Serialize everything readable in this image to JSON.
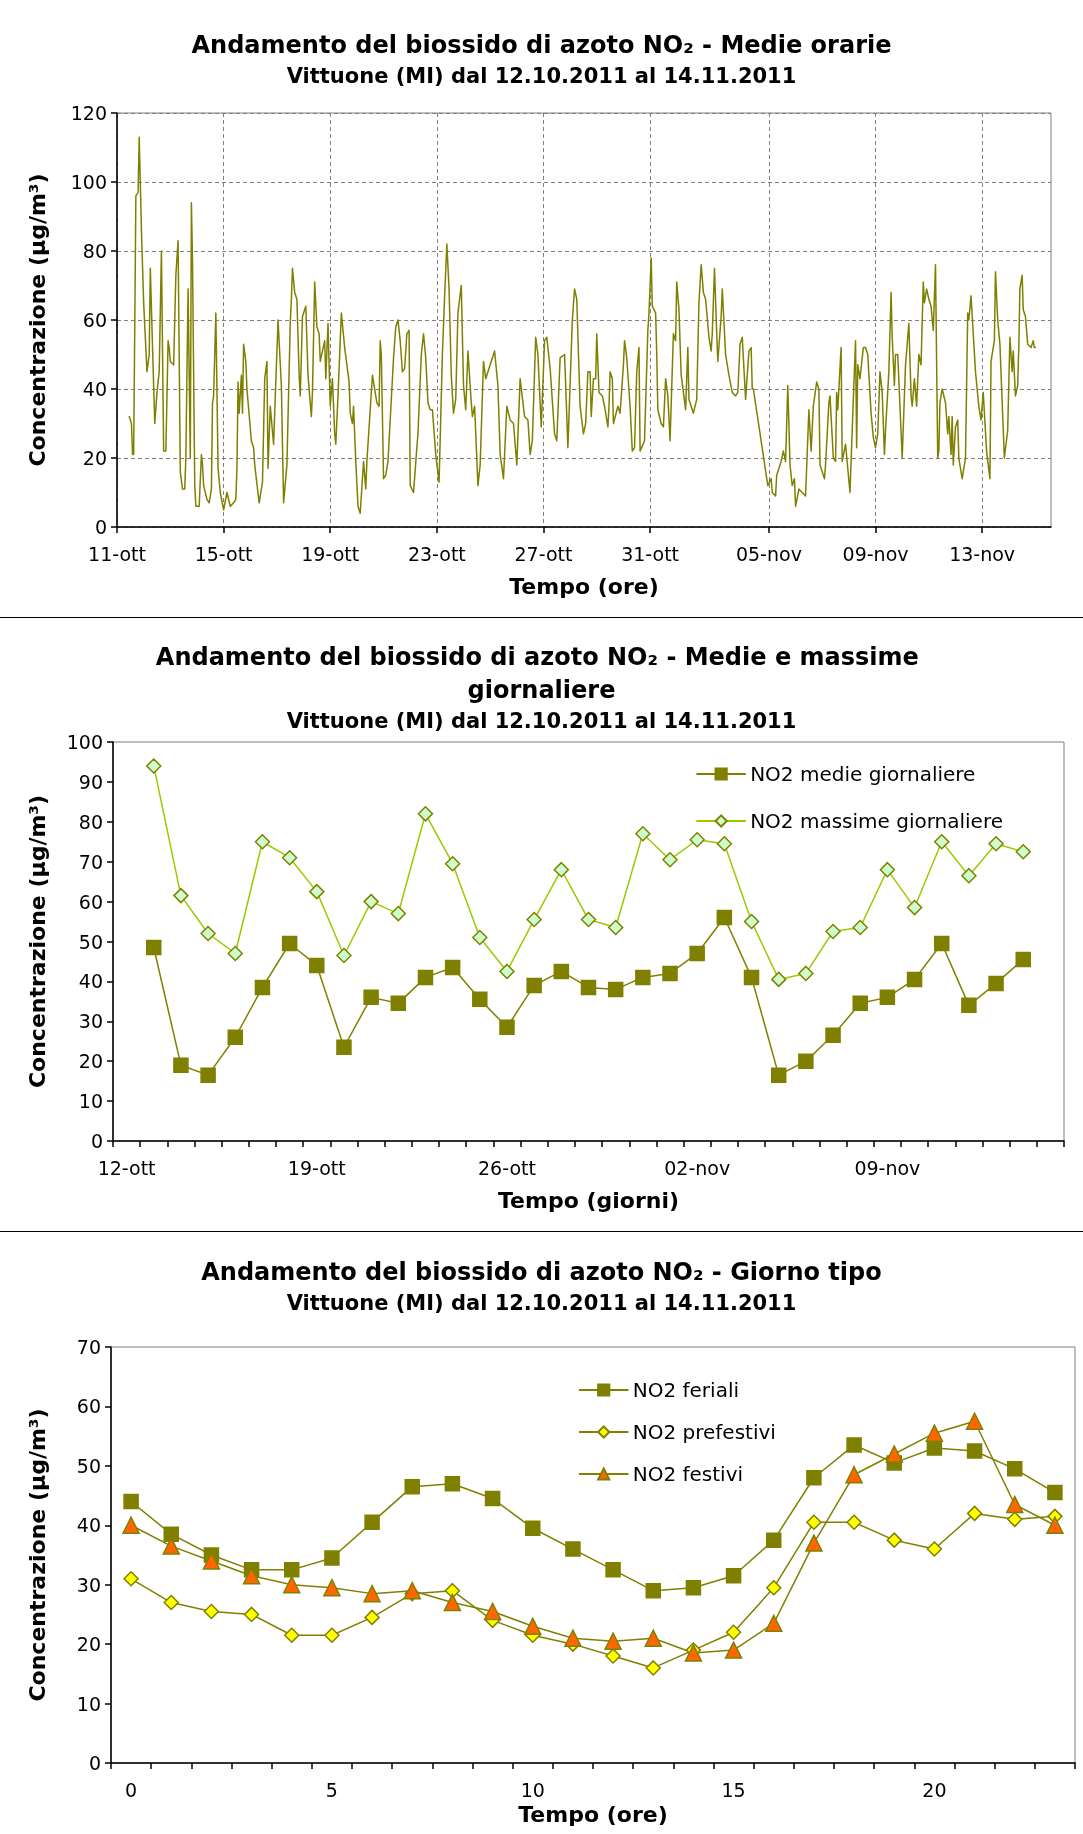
{
  "chart_data": [
    {
      "type": "line",
      "title": "Andamento del biossido di azoto NO₂ - Medie orarie",
      "subtitle": "Vittuone (MI) dal 12.10.2011 al 14.11.2011",
      "xlabel": "Tempo (ore)",
      "ylabel": "Concentrazione (µg/m³)",
      "color": "#808000",
      "grid": true,
      "xlim": [
        "2011-10-11T13:00",
        "2011-11-15T14:00"
      ],
      "xticks": [
        {
          "value": "2011-10-11T13:00",
          "label": "11-ott"
        },
        {
          "value": "2011-10-15T13:00",
          "label": "15-ott"
        },
        {
          "value": "2011-10-19T13:00",
          "label": "19-ott"
        },
        {
          "value": "2011-10-23T13:00",
          "label": "23-ott"
        },
        {
          "value": "2011-10-27T13:00",
          "label": "27-ott"
        },
        {
          "value": "2011-10-31T13:00",
          "label": "31-ott"
        },
        {
          "value": "2011-11-05T00:00",
          "label": "05-nov"
        },
        {
          "value": "2011-11-09T00:00",
          "label": "09-nov"
        },
        {
          "value": "2011-11-13T00:00",
          "label": "13-nov"
        }
      ],
      "ylim": [
        0,
        120
      ],
      "yticks": [
        0,
        20,
        40,
        60,
        80,
        100,
        120
      ],
      "x": [
        "2011-10-12T00:00",
        "2011-10-12T02:00",
        "2011-10-12T03:00",
        "2011-10-12T04:00",
        "2011-10-12T06:00",
        "2011-10-12T08:00",
        "2011-10-12T09:00",
        "2011-10-12T11:00",
        "2011-10-12T13:00",
        "2011-10-12T16:00",
        "2011-10-12T18:00",
        "2011-10-12T19:00",
        "2011-10-12T21:00",
        "2011-10-12T23:00",
        "2011-10-13T01:00",
        "2011-10-13T03:00",
        "2011-10-13T05:00",
        "2011-10-13T07:00",
        "2011-10-13T09:00",
        "2011-10-13T11:00",
        "2011-10-13T12:00",
        "2011-10-13T13:00",
        "2011-10-13T16:00",
        "2011-10-13T18:00",
        "2011-10-13T20:00",
        "2011-10-13T22:00",
        "2011-10-14T00:00",
        "2011-10-14T02:00",
        "2011-10-14T03:00",
        "2011-10-14T05:00",
        "2011-10-14T07:00",
        "2011-10-14T08:00",
        "2011-10-14T09:00",
        "2011-10-14T11:00",
        "2011-10-14T12:00",
        "2011-10-14T15:00",
        "2011-10-14T17:00",
        "2011-10-14T18:00",
        "2011-10-14T19:00",
        "2011-10-14T22:00",
        "2011-10-15T00:00",
        "2011-10-15T02:00",
        "2011-10-15T03:00",
        "2011-10-15T04:00",
        "2011-10-15T06:00",
        "2011-10-15T08:00",
        "2011-10-15T10:00",
        "2011-10-15T13:00",
        "2011-10-15T16:00",
        "2011-10-15T19:00",
        "2011-10-15T22:00",
        "2011-10-16T00:00",
        "2011-10-16T01:00",
        "2011-10-16T02:00",
        "2011-10-16T03:00",
        "2011-10-16T05:00",
        "2011-10-16T06:00",
        "2011-10-16T07:00",
        "2011-10-16T09:00",
        "2011-10-16T10:00",
        "2011-10-16T14:00",
        "2011-10-16T16:00",
        "2011-10-16T17:00",
        "2011-10-16T21:00",
        "2011-10-17T00:00",
        "2011-10-17T02:00",
        "2011-10-17T04:00",
        "2011-10-17T05:00",
        "2011-10-17T07:00",
        "2011-10-17T10:00",
        "2011-10-17T14:00",
        "2011-10-17T17:00",
        "2011-10-17T19:00",
        "2011-10-17T22:00",
        "2011-10-18T01:00",
        "2011-10-18T02:00",
        "2011-10-18T03:00",
        "2011-10-18T05:00",
        "2011-10-18T07:00",
        "2011-10-18T09:00",
        "2011-10-18T10:00",
        "2011-10-18T12:00",
        "2011-10-18T15:00",
        "2011-10-18T17:00",
        "2011-10-18T20:00",
        "2011-10-18T21:00",
        "2011-10-18T23:00",
        "2011-10-19T01:00",
        "2011-10-19T03:00",
        "2011-10-19T04:00",
        "2011-10-19T08:00",
        "2011-10-19T09:00",
        "2011-10-19T11:00",
        "2011-10-19T13:00",
        "2011-10-19T15:00",
        "2011-10-19T17:00",
        "2011-10-19T18:00",
        "2011-10-19T20:00",
        "2011-10-19T23:00",
        "2011-10-20T02:00",
        "2011-10-20T06:00",
        "2011-10-20T07:00",
        "2011-10-20T09:00",
        "2011-10-20T10:00",
        "2011-10-20T12:00",
        "2011-10-20T14:00",
        "2011-10-20T16:00",
        "2011-10-20T19:00",
        "2011-10-20T21:00",
        "2011-10-20T22:00",
        "2011-10-21T03:00",
        "2011-10-21T07:00",
        "2011-10-21T09:00",
        "2011-10-21T10:00",
        "2011-10-21T11:00",
        "2011-10-21T13:00",
        "2011-10-21T15:00",
        "2011-10-21T17:00",
        "2011-10-21T22:00",
        "2011-10-22T00:00",
        "2011-10-22T02:00",
        "2011-10-22T04:00",
        "2011-10-22T06:00",
        "2011-10-22T08:00",
        "2011-10-22T10:00",
        "2011-10-22T12:00",
        "2011-10-22T13:00",
        "2011-10-22T16:00",
        "2011-10-22T19:00",
        "2011-10-22T20:00",
        "2011-10-22T23:00",
        "2011-10-23T01:00",
        "2011-10-23T03:00",
        "2011-10-23T05:00",
        "2011-10-23T07:00",
        "2011-10-23T09:00",
        "2011-10-23T12:00",
        "2011-10-23T15:00",
        "2011-10-23T18:00",
        "2011-10-23T20:00",
        "2011-10-23T22:00",
        "2011-10-24T00:00",
        "2011-10-24T02:00",
        "2011-10-24T04:00",
        "2011-10-24T06:00",
        "2011-10-24T08:00",
        "2011-10-24T11:00",
        "2011-10-24T13:00",
        "2011-10-24T15:00",
        "2011-10-24T17:00",
        "2011-10-24T20:00",
        "2011-10-24T21:00",
        "2011-10-24T23:00",
        "2011-10-25T02:00",
        "2011-10-25T04:00",
        "2011-10-25T07:00",
        "2011-10-25T09:00",
        "2011-10-25T12:00",
        "2011-10-25T15:00",
        "2011-10-25T17:00",
        "2011-10-25T20:00",
        "2011-10-25T22:00",
        "2011-10-26T01:00",
        "2011-10-26T04:00",
        "2011-10-26T07:00",
        "2011-10-26T10:00",
        "2011-10-26T13:00",
        "2011-10-26T16:00",
        "2011-10-26T20:00",
        "2011-10-26T23:00",
        "2011-10-27T01:00",
        "2011-10-27T03:00",
        "2011-10-27T06:00",
        "2011-10-27T08:00",
        "2011-10-27T11:00",
        "2011-10-27T14:00",
        "2011-10-27T16:00",
        "2011-10-27T19:00",
        "2011-10-27T23:00",
        "2011-10-28T01:00",
        "2011-10-28T04:00",
        "2011-10-28T08:00",
        "2011-10-28T11:00",
        "2011-10-28T15:00",
        "2011-10-28T17:00",
        "2011-10-28T19:00",
        "2011-10-28T22:00",
        "2011-10-29T01:00",
        "2011-10-29T03:00",
        "2011-10-29T05:00",
        "2011-10-29T07:00",
        "2011-10-29T08:00",
        "2011-10-29T10:00",
        "2011-10-29T12:00",
        "2011-10-29T13:00",
        "2011-10-29T15:00",
        "2011-10-29T18:00",
        "2011-10-29T20:00",
        "2011-10-29T23:00",
        "2011-10-30T00:00",
        "2011-10-30T01:00",
        "2011-10-30T03:00",
        "2011-10-30T04:00",
        "2011-10-30T08:00",
        "2011-10-30T10:00",
        "2011-10-30T13:00",
        "2011-10-30T14:00",
        "2011-10-30T16:00",
        "2011-10-30T19:00",
        "2011-10-30T21:00",
        "2011-10-30T23:00",
        "2011-10-31T01:00",
        "2011-10-31T03:00",
        "2011-10-31T04:00",
        "2011-10-31T08:00",
        "2011-10-31T11:00",
        "2011-10-31T12:00",
        "2011-10-31T14:00",
        "2011-10-31T15:00",
        "2011-10-31T18:00",
        "2011-10-31T19:00",
        "2011-10-31T20:00",
        "2011-10-31T23:00",
        "2011-11-01T01:00",
        "2011-11-01T03:00",
        "2011-11-01T05:00",
        "2011-11-01T07:00",
        "2011-11-01T10:00",
        "2011-11-01T12:00",
        "2011-11-01T13:00",
        "2011-11-01T15:00",
        "2011-11-01T17:00",
        "2011-11-01T21:00",
        "2011-11-01T23:00",
        "2011-11-02T00:00",
        "2011-11-02T04:00",
        "2011-11-02T07:00",
        "2011-11-02T09:00",
        "2011-11-02T11:00",
        "2011-11-02T13:00",
        "2011-11-02T15:00",
        "2011-11-02T18:00",
        "2011-11-02T20:00",
        "2011-11-02T21:00",
        "2011-11-02T23:00",
        "2011-11-03T01:00",
        "2011-11-03T02:00",
        "2011-11-03T05:00",
        "2011-11-03T06:00",
        "2011-11-03T09:00",
        "2011-11-03T12:00",
        "2011-11-03T15:00",
        "2011-11-03T18:00",
        "2011-11-03T20:00",
        "2011-11-03T22:00",
        "2011-11-04T00:00",
        "2011-11-04T02:00",
        "2011-11-04T03:00",
        "2011-11-04T06:00",
        "2011-11-04T08:00",
        "2011-11-04T09:00",
        "2011-11-04T10:00",
        "2011-11-04T23:00",
        "2011-11-05T02:00",
        "2011-11-05T03:00",
        "2011-11-05T06:00",
        "2011-11-05T07:00",
        "2011-11-05T11:00",
        "2011-11-05T13:00",
        "2011-11-05T15:00",
        "2011-11-05T17:00",
        "2011-11-05T19:00",
        "2011-11-05T21:00",
        "2011-11-05T23:00",
        "2011-11-06T00:00",
        "2011-11-06T03:00",
        "2011-11-06T06:00",
        "2011-11-06T09:00",
        "2011-11-06T12:00",
        "2011-11-06T14:00",
        "2011-11-06T16:00",
        "2011-11-06T19:00",
        "2011-11-06T21:00",
        "2011-11-06T22:00",
        "2011-11-07T02:00",
        "2011-11-07T03:00",
        "2011-11-07T06:00",
        "2011-11-07T07:00",
        "2011-11-07T10:00",
        "2011-11-07T12:00",
        "2011-11-07T13:00",
        "2011-11-07T14:00",
        "2011-11-07T17:00",
        "2011-11-07T18:00",
        "2011-11-07T21:00",
        "2011-11-08T01:00",
        "2011-11-08T04:00",
        "2011-11-08T06:00",
        "2011-11-08T07:00",
        "2011-11-08T08:00",
        "2011-11-08T10:00",
        "2011-11-08T13:00",
        "2011-11-08T15:00",
        "2011-11-08T17:00",
        "2011-11-08T20:00",
        "2011-11-08T22:00",
        "2011-11-09T00:00",
        "2011-11-09T02:00",
        "2011-11-09T04:00",
        "2011-11-09T06:00",
        "2011-11-09T08:00",
        "2011-11-09T09:00",
        "2011-11-09T12:00",
        "2011-11-09T14:00",
        "2011-11-09T15:00",
        "2011-11-09T17:00",
        "2011-11-09T18:00",
        "2011-11-09T20:00",
        "2011-11-10T00:00",
        "2011-11-10T03:00",
        "2011-11-10T06:00",
        "2011-11-10T08:00",
        "2011-11-10T09:00",
        "2011-11-10T11:00",
        "2011-11-10T13:00",
        "2011-11-10T15:00",
        "2011-11-10T17:00",
        "2011-11-10T19:00",
        "2011-11-10T20:00",
        "2011-11-10T22:00",
        "2011-11-11T00:00",
        "2011-11-11T02:00",
        "2011-11-11T04:00",
        "2011-11-11T06:00",
        "2011-11-11T08:00",
        "2011-11-11T09:00",
        "2011-11-11T10:00",
        "2011-11-11T12:00",
        "2011-11-11T15:00",
        "2011-11-11T17:00",
        "2011-11-11T18:00",
        "2011-11-11T20:00",
        "2011-11-11T21:00",
        "2011-11-11T22:00",
        "2011-11-12T00:00",
        "2011-11-12T02:00",
        "2011-11-12T03:00",
        "2011-11-12T06:00",
        "2011-11-12T09:00",
        "2011-11-12T11:00",
        "2011-11-12T12:00",
        "2011-11-12T14:00",
        "2011-11-12T16:00",
        "2011-11-12T18:00",
        "2011-11-12T21:00",
        "2011-11-12T23:00",
        "2011-11-13T01:00",
        "2011-11-13T04:00",
        "2011-11-13T07:00",
        "2011-11-13T08:00",
        "2011-11-13T11:00",
        "2011-11-13T12:00",
        "2011-11-13T14:00",
        "2011-11-13T16:00",
        "2011-11-13T20:00",
        "2011-11-13T23:00",
        "2011-11-14T01:00",
        "2011-11-14T03:00",
        "2011-11-14T04:00",
        "2011-11-14T06:00",
        "2011-11-14T08:00",
        "2011-11-14T09:00",
        "2011-11-14T10:00",
        "2011-11-14T12:00",
        "2011-11-14T13:00",
        "2011-11-14T15:00",
        "2011-11-14T17:00",
        "2011-11-14T20:00",
        "2011-11-14T22:00",
        "2011-11-14T23:00",
        "2011-11-15T00:00"
      ],
      "values": [
        32,
        30,
        21,
        21,
        96,
        97,
        113,
        86,
        65,
        45,
        50,
        75,
        52,
        30,
        39,
        45,
        80,
        22,
        22,
        54,
        52,
        48,
        47,
        73,
        83,
        16,
        11,
        11,
        20,
        69,
        20,
        94,
        77,
        12,
        6,
        6,
        21,
        18,
        12,
        8,
        7,
        11,
        36,
        38,
        62,
        17,
        10,
        5,
        10,
        6,
        7,
        8,
        17,
        42,
        33,
        44,
        33,
        53,
        48,
        40,
        25,
        23,
        18,
        7,
        13,
        43,
        48,
        17,
        35,
        24,
        60,
        41,
        7,
        18,
        59,
        66,
        75,
        68,
        66,
        44,
        38,
        61,
        64,
        44,
        32,
        39,
        71,
        58,
        56,
        48,
        54,
        43,
        59,
        35,
        43,
        27,
        24,
        38,
        62,
        52,
        42,
        33,
        30,
        35,
        19,
        6,
        4,
        19,
        11,
        19,
        44,
        36,
        35,
        54,
        50,
        14,
        15,
        19,
        49,
        58,
        60,
        54,
        45,
        46,
        56,
        57,
        12,
        10,
        23,
        27,
        50,
        56,
        49,
        36,
        34,
        34,
        21,
        13,
        50,
        67,
        82,
        69,
        44,
        33,
        37,
        62,
        70,
        41,
        34,
        51,
        36,
        32,
        35,
        12,
        18,
        48,
        43,
        46,
        49,
        51,
        41,
        21,
        14,
        35,
        31,
        30,
        18,
        43,
        32,
        31,
        21,
        25,
        55,
        50,
        29,
        54,
        55,
        46,
        27,
        25,
        49,
        50,
        23,
        60,
        69,
        66,
        35,
        27,
        30,
        45,
        45,
        32,
        43,
        43,
        56,
        39,
        38,
        35,
        29,
        35,
        45,
        43,
        30,
        35,
        33,
        47,
        54,
        49,
        35,
        22,
        23,
        45,
        52,
        22,
        25,
        57,
        62,
        78,
        64,
        62,
        50,
        34,
        30,
        29,
        43,
        38,
        25,
        56,
        54,
        71,
        63,
        44,
        34,
        52,
        37,
        33,
        37,
        65,
        76,
        68,
        66,
        55,
        51,
        56,
        75,
        56,
        48,
        61,
        69,
        50,
        44,
        39,
        38,
        39,
        53,
        55,
        43,
        37,
        51,
        52,
        40,
        40,
        12,
        14,
        10,
        9,
        15,
        19,
        22,
        19,
        41,
        18,
        12,
        14,
        6,
        11,
        10,
        9,
        34,
        22,
        35,
        42,
        40,
        18,
        14,
        18,
        36,
        38,
        20,
        19,
        39,
        34,
        52,
        19,
        24,
        10,
        37,
        54,
        23,
        47,
        43,
        52,
        52,
        50,
        33,
        26,
        23,
        27,
        45,
        39,
        21,
        28,
        45,
        68,
        55,
        41,
        50,
        50,
        20,
        47,
        59,
        38,
        35,
        43,
        35,
        50,
        47,
        71,
        65,
        69,
        66,
        64,
        57,
        76,
        20,
        22,
        36,
        40,
        36,
        27,
        32,
        21,
        32,
        18,
        29,
        31,
        20,
        14,
        20,
        62,
        60,
        67,
        56,
        45,
        35,
        31,
        39,
        22,
        14,
        48,
        54,
        74,
        60,
        53,
        20,
        28,
        55,
        45,
        51,
        38,
        41,
        52,
        69,
        73,
        63,
        61,
        53,
        52,
        54,
        52,
        52
      ]
    },
    {
      "type": "line",
      "title": "Andamento del biossido di azoto NO₂ - Medie e massime giornaliere",
      "subtitle": "Vittuone (MI) dal 12.10.2011 al 14.11.2011",
      "xlabel": "Tempo (giorni)",
      "ylabel": "Concentrazione (µg/m³)",
      "legend": "top right",
      "categories": [
        "12-ott",
        null,
        null,
        null,
        null,
        null,
        null,
        "19-ott",
        null,
        null,
        null,
        null,
        null,
        null,
        "26-ott",
        null,
        null,
        null,
        null,
        null,
        null,
        "02-nov",
        null,
        null,
        null,
        null,
        null,
        null,
        "09-nov",
        null,
        null,
        null,
        null,
        null,
        null
      ],
      "ylim": [
        0,
        100
      ],
      "yticks": [
        0,
        10,
        20,
        30,
        40,
        50,
        60,
        70,
        80,
        90,
        100
      ],
      "series": [
        {
          "name": "NO2 medie giornaliere",
          "color": "#808000",
          "marker": "square",
          "values": [
            null,
            48.5,
            19,
            16.5,
            26,
            38.5,
            49.5,
            44,
            23.5,
            36,
            34.5,
            41,
            43.5,
            35.5,
            28.5,
            39,
            42.5,
            38.5,
            38,
            41,
            42,
            47,
            56,
            41,
            16.5,
            20,
            26.5,
            34.5,
            36,
            40.5,
            49.5,
            34,
            39.5,
            45.5,
            null
          ]
        },
        {
          "name": "NO2 massime giornaliere",
          "color": "#99cc00",
          "marker": "diamond",
          "values": [
            null,
            94,
            61.5,
            52,
            47,
            75,
            71,
            62.5,
            46.5,
            60,
            57,
            82,
            69.5,
            51,
            42.5,
            55.5,
            68,
            55.5,
            53.5,
            77,
            70.5,
            75.5,
            74.5,
            55,
            40.5,
            42,
            52.5,
            53.5,
            68,
            58.5,
            75,
            66.5,
            74.5,
            72.5,
            null
          ]
        }
      ]
    },
    {
      "type": "line",
      "title": "Andamento del biossido di azoto NO₂ - Giorno tipo",
      "subtitle": "Vittuone (MI) dal 12.10.2011 al 14.11.2011",
      "xlabel": "Tempo (ore)",
      "ylabel": "Concentrazione (µg/m³)",
      "legend": "top",
      "categories": [
        "0",
        null,
        null,
        null,
        null,
        "5",
        null,
        null,
        null,
        null,
        "10",
        null,
        null,
        null,
        null,
        "15",
        null,
        null,
        null,
        null,
        "20",
        null,
        null,
        null
      ],
      "ylim": [
        0,
        70
      ],
      "yticks": [
        0,
        10,
        20,
        30,
        40,
        50,
        60,
        70
      ],
      "series": [
        {
          "name": "NO2 feriali",
          "color": "#808000",
          "marker": "square",
          "values": [
            44,
            38.5,
            35,
            32.5,
            32.5,
            34.5,
            40.5,
            46.5,
            47,
            44.5,
            39.5,
            36,
            32.5,
            29,
            29.5,
            31.5,
            37.5,
            48,
            53.5,
            50.5,
            53,
            52.5,
            49.5,
            45.5
          ]
        },
        {
          "name": "NO2 prefestivi",
          "color": "#ffff00",
          "marker": "diamond",
          "values": [
            31,
            27,
            25.5,
            25,
            21.5,
            21.5,
            24.5,
            28.5,
            29,
            24,
            21.5,
            20,
            18,
            16,
            19,
            22,
            29.5,
            40.5,
            40.5,
            37.5,
            36,
            42,
            41,
            41.5
          ]
        },
        {
          "name": "NO2 festivi",
          "color": "#ff6600",
          "marker": "triangle",
          "values": [
            40,
            36.5,
            34,
            31.5,
            30,
            29.5,
            28.5,
            29,
            27,
            25.5,
            23,
            21,
            20.5,
            21,
            18.5,
            19,
            23.5,
            37,
            48.5,
            52,
            55.5,
            57.5,
            43.5,
            40
          ]
        }
      ]
    }
  ]
}
